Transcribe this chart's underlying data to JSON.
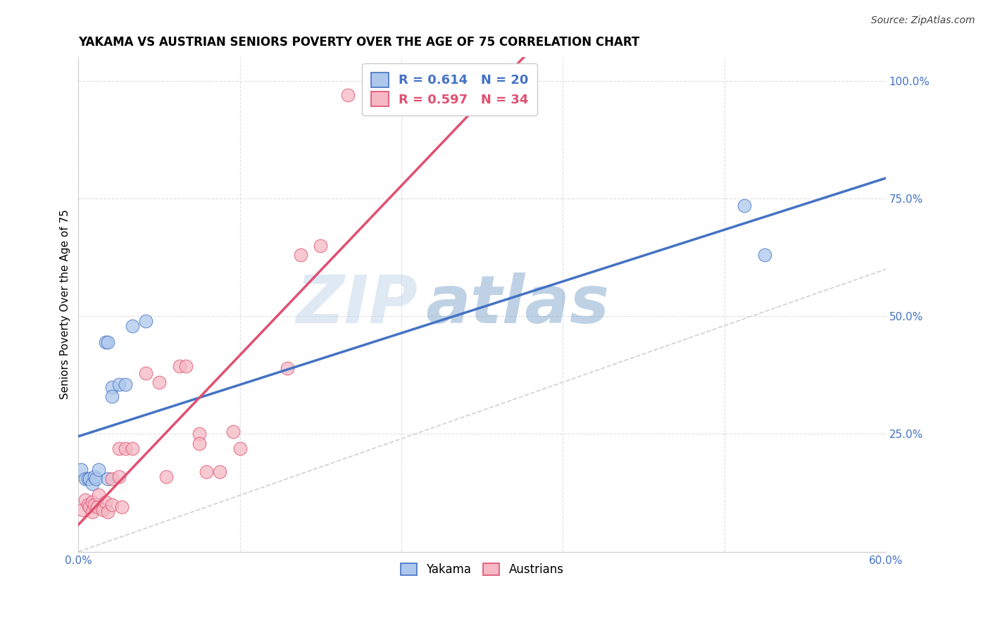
{
  "title": "YAKAMA VS AUSTRIAN SENIORS POVERTY OVER THE AGE OF 75 CORRELATION CHART",
  "source": "Source: ZipAtlas.com",
  "ylabel": "Seniors Poverty Over the Age of 75",
  "xlim": [
    0.0,
    0.6
  ],
  "ylim": [
    0.0,
    1.05
  ],
  "watermark_zip": "ZIP",
  "watermark_atlas": "atlas",
  "yakama_color": "#adc8ec",
  "austrians_color": "#f5b8c4",
  "yakama_line_color": "#4472c4",
  "austrians_line_color": "#e05070",
  "diagonal_color": "#d0d0d0",
  "yakama_x": [
    0.002,
    0.005,
    0.007,
    0.008,
    0.01,
    0.012,
    0.013,
    0.014,
    0.015,
    0.02,
    0.022,
    0.022,
    0.025,
    0.025,
    0.03,
    0.035,
    0.04,
    0.05,
    0.495,
    0.51
  ],
  "yakama_y": [
    0.175,
    0.155,
    0.155,
    0.155,
    0.145,
    0.16,
    0.155,
    0.1,
    0.175,
    0.445,
    0.445,
    0.155,
    0.35,
    0.33,
    0.355,
    0.355,
    0.48,
    0.49,
    0.735,
    0.63
  ],
  "austrians_x": [
    0.003,
    0.005,
    0.007,
    0.008,
    0.01,
    0.01,
    0.012,
    0.014,
    0.015,
    0.018,
    0.02,
    0.022,
    0.025,
    0.025,
    0.03,
    0.03,
    0.032,
    0.035,
    0.04,
    0.05,
    0.06,
    0.065,
    0.075,
    0.08,
    0.09,
    0.09,
    0.095,
    0.105,
    0.115,
    0.12,
    0.155,
    0.165,
    0.18,
    0.2
  ],
  "austrians_y": [
    0.09,
    0.11,
    0.1,
    0.095,
    0.105,
    0.085,
    0.1,
    0.095,
    0.12,
    0.09,
    0.105,
    0.085,
    0.155,
    0.1,
    0.22,
    0.16,
    0.095,
    0.22,
    0.22,
    0.38,
    0.36,
    0.16,
    0.395,
    0.395,
    0.25,
    0.23,
    0.17,
    0.17,
    0.255,
    0.22,
    0.39,
    0.63,
    0.65,
    0.97
  ],
  "yakama_line_x0": 0.0,
  "yakama_line_y0": 0.175,
  "yakama_line_x1": 0.6,
  "yakama_line_y1": 0.75,
  "austrians_line_x0": 0.0,
  "austrians_line_y0": 0.03,
  "austrians_line_x1": 0.2,
  "austrians_line_y1": 0.75,
  "legend_yakama_label": "R = 0.614   N = 20",
  "legend_austrians_label": "R = 0.597   N = 34",
  "background_color": "#ffffff",
  "grid_color": "#e0e0e0",
  "title_fontsize": 12,
  "axis_label_fontsize": 11,
  "tick_fontsize": 11,
  "source_fontsize": 10
}
